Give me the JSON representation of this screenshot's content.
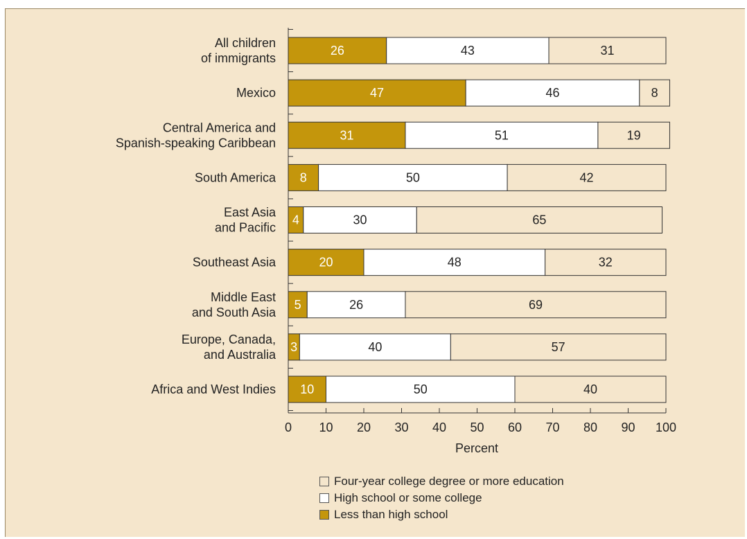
{
  "header_fragment": "",
  "chart_data": {
    "type": "bar",
    "orientation": "horizontal",
    "stacked": true,
    "categories": [
      "All children\nof immigrants",
      "Mexico",
      "Central America and\nSpanish-speaking Caribbean",
      "South America",
      "East Asia\nand Pacific",
      "Southeast Asia",
      "Middle East\nand South Asia",
      "Europe, Canada,\nand Australia",
      "Africa and West Indies"
    ],
    "series": [
      {
        "name": "Less than high school",
        "color": "#c4960c",
        "text_color": "#ffffff",
        "values": [
          26,
          47,
          31,
          8,
          4,
          20,
          5,
          3,
          10
        ]
      },
      {
        "name": "High school or some college",
        "color": "#ffffff",
        "text_color": "#222222",
        "values": [
          43,
          46,
          51,
          50,
          30,
          48,
          26,
          40,
          50
        ]
      },
      {
        "name": "Four-year college degree or more education",
        "color": "#f5e6cc",
        "text_color": "#222222",
        "values": [
          31,
          8,
          19,
          42,
          65,
          32,
          69,
          57,
          40
        ]
      }
    ],
    "segment_starts": [
      [
        0,
        26,
        69
      ],
      [
        0,
        47,
        93
      ],
      [
        0,
        31,
        82
      ],
      [
        0,
        8,
        58
      ],
      [
        0,
        4,
        34
      ],
      [
        0,
        20,
        68
      ],
      [
        0,
        5,
        31
      ],
      [
        0,
        3,
        43
      ],
      [
        0,
        10,
        60
      ]
    ],
    "xlim": [
      0,
      100
    ],
    "xticks": [
      0,
      10,
      20,
      30,
      40,
      50,
      60,
      70,
      80,
      90,
      100
    ],
    "xlabel": "Percent",
    "ylabel": "",
    "title": "",
    "grid": false,
    "legend": {
      "position": "bottom",
      "order": [
        "Four-year college degree or more education",
        "High school or some college",
        "Less than high school"
      ]
    }
  }
}
